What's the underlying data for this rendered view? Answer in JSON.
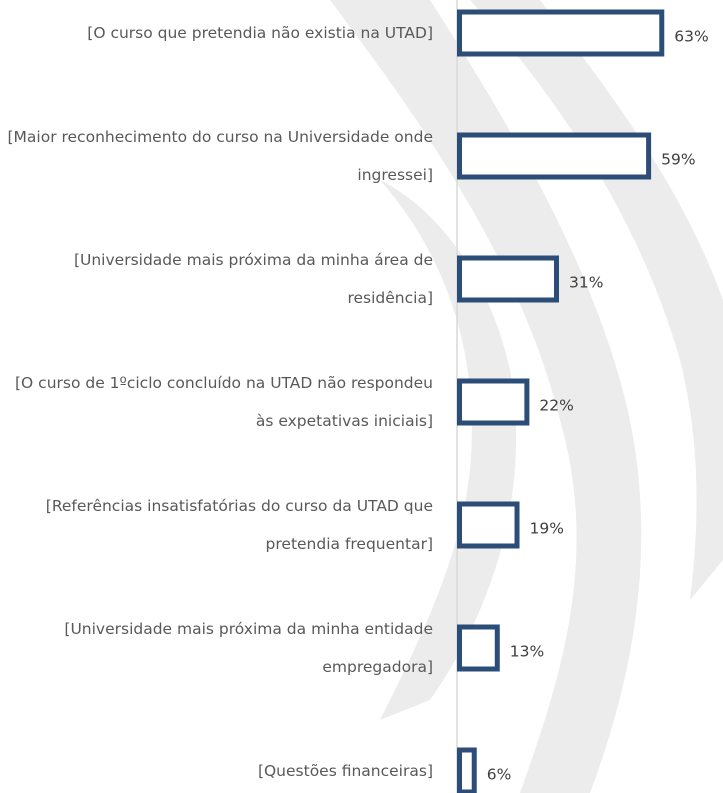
{
  "chart_data": {
    "type": "hbar",
    "categories": [
      "[O curso que pretendia não existia na UTAD]",
      "[Maior reconhecimento do curso na Universidade onde ingressei]",
      "[Universidade mais próxima da minha área de residência]",
      "[O curso de 1ºciclo concluído na UTAD não respondeu às expetativas iniciais]",
      "[Referências insatisfatórias do curso da UTAD que pretendia frequentar]",
      "[Universidade mais próxima da minha entidade empregadora]",
      "[Questões financeiras]"
    ],
    "values": [
      63,
      59,
      31,
      22,
      19,
      13,
      6
    ],
    "value_labels": [
      "63%",
      "59%",
      "31%",
      "22%",
      "19%",
      "13%",
      "6%"
    ],
    "color": "#2b4d78"
  }
}
